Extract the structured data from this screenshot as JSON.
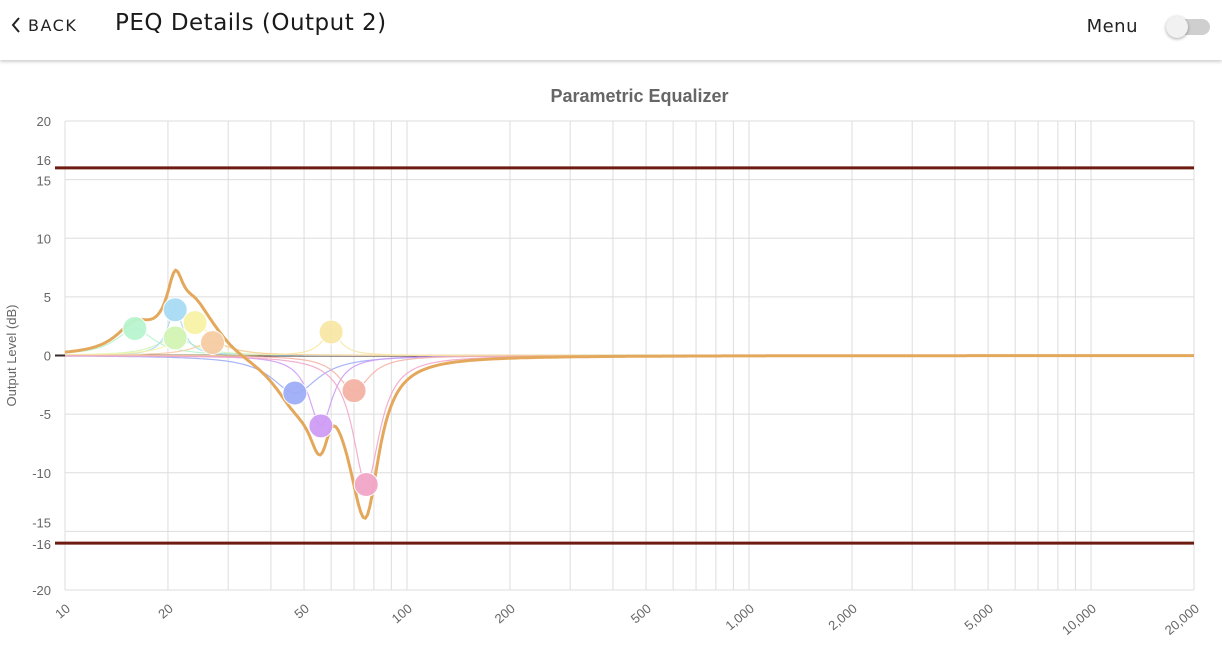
{
  "header": {
    "back_label": "BACK",
    "title": "PEQ Details (Output 2)",
    "menu_label": "Menu",
    "menu_toggle_on": false
  },
  "chart_data": {
    "type": "line",
    "title": "Parametric Equalizer",
    "ylabel": "Output Level (dB)",
    "xlabel": "",
    "x_scale": "log",
    "xlim": [
      10,
      20000
    ],
    "ylim": [
      -20,
      20
    ],
    "grid": true,
    "x_ticks": [
      10,
      20,
      50,
      100,
      200,
      500,
      1000,
      2000,
      5000,
      10000,
      20000
    ],
    "x_tick_labels": [
      "10",
      "20",
      "50",
      "100",
      "200",
      "500",
      "1,000",
      "2,000",
      "5,000",
      "10,000",
      "20,000"
    ],
    "y_ticks": [
      -20,
      -16,
      -15,
      -10,
      -5,
      0,
      5,
      10,
      15,
      16,
      20
    ],
    "y_tick_labels": [
      "-20",
      "-16",
      "-15",
      "-10",
      "-5",
      "0",
      "5",
      "10",
      "15",
      "16",
      "20"
    ],
    "limit_lines": [
      16,
      -16
    ],
    "limit_color": "#6e1b12",
    "response_color": "#e3a85c",
    "bands": [
      {
        "freq": 16,
        "gain": 2.3,
        "q": 5,
        "color": "#b8f5cf"
      },
      {
        "freq": 21,
        "gain": 1.5,
        "q": 5,
        "color": "#d3f5b5"
      },
      {
        "freq": 21,
        "gain": 3.9,
        "q": 12,
        "color": "#a9dcf5"
      },
      {
        "freq": 24,
        "gain": 2.8,
        "q": 6,
        "color": "#f8f3a6"
      },
      {
        "freq": 27,
        "gain": 1.1,
        "q": 5,
        "color": "#f6cca3"
      },
      {
        "freq": 47,
        "gain": -3.2,
        "q": 4,
        "color": "#9fadf7"
      },
      {
        "freq": 56,
        "gain": -6.0,
        "q": 8,
        "color": "#cf9cf5"
      },
      {
        "freq": 60,
        "gain": 2.0,
        "q": 10,
        "color": "#f8e7a6"
      },
      {
        "freq": 70,
        "gain": -3.0,
        "q": 6,
        "color": "#f5b3a6"
      },
      {
        "freq": 76,
        "gain": -11.0,
        "q": 7,
        "color": "#f2a6c9"
      }
    ]
  }
}
